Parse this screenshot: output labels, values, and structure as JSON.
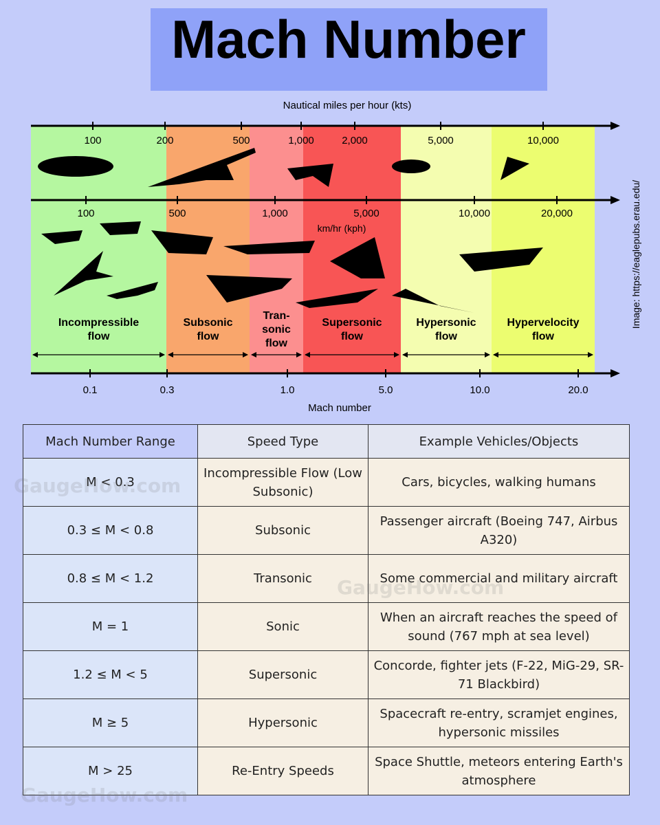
{
  "title": "Mach Number",
  "diagram": {
    "kts_label": "Nautical miles per hour (kts)",
    "kts_ticks": [
      "100",
      "200",
      "500",
      "1,000",
      "2,000",
      "5,000",
      "10,000"
    ],
    "kph_ticks": [
      "100",
      "500",
      "1,000",
      "5,000",
      "10,000",
      "20,000"
    ],
    "kph_label": "km/hr (kph)",
    "mach_ticks": [
      "0.1",
      "0.3",
      "1.0",
      "5.0",
      "10.0",
      "20.0"
    ],
    "mach_label": "Mach number",
    "regions": [
      {
        "name": [
          "Incompressible",
          "flow"
        ]
      },
      {
        "name": [
          "Subsonic",
          "flow"
        ]
      },
      {
        "name": [
          "Tran-",
          "sonic",
          "flow"
        ]
      },
      {
        "name": [
          "Supersonic",
          "flow"
        ]
      },
      {
        "name": [
          "Hypersonic",
          "flow"
        ]
      },
      {
        "name": [
          "Hypervelocity",
          "flow"
        ]
      }
    ],
    "credit": "Image: https://eaglepubs.erau.edu/"
  },
  "table": {
    "header": [
      "Mach Number Range",
      "Speed Type",
      "Example Vehicles/Objects"
    ],
    "rows": [
      [
        "M < 0.3",
        "Incompressible Flow (Low Subsonic)",
        "Cars, bicycles, walking humans"
      ],
      [
        "0.3 ≤ M < 0.8",
        "Subsonic",
        "Passenger aircraft (Boeing 747, Airbus A320)"
      ],
      [
        "0.8 ≤ M < 1.2",
        "Transonic",
        "Some commercial and military aircraft"
      ],
      [
        "M = 1",
        "Sonic",
        "When an aircraft reaches the speed of sound (767 mph at sea level)"
      ],
      [
        "1.2 ≤ M < 5",
        "Supersonic",
        "Concorde, fighter jets (F-22, MiG-29, SR-71 Blackbird)"
      ],
      [
        "M ≥ 5",
        "Hypersonic",
        "Spacecraft re-entry, scramjet engines, hypersonic missiles"
      ],
      [
        "M > 25",
        "Re-Entry Speeds",
        "Space Shuttle, meteors entering Earth's atmosphere"
      ]
    ]
  },
  "watermark": "GaugeHow.com"
}
